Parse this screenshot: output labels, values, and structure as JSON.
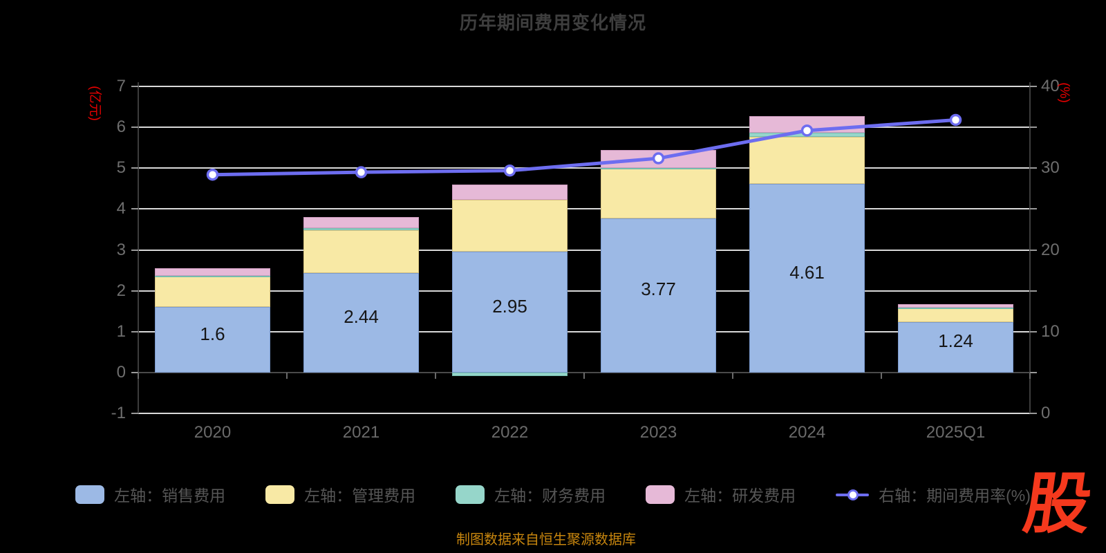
{
  "header": {
    "title": "历年期间费用变化情况"
  },
  "footer": {
    "source_note": "制图数据来自恒生聚源数据库",
    "logo_text": "股"
  },
  "chart_data": {
    "type": "combo: stacked bar (left axis) + line (right axis)",
    "title": "历年期间费用变化情况",
    "categories": [
      "2020",
      "2021",
      "2022",
      "2023",
      "2024",
      "2025Q1"
    ],
    "left_axis": {
      "label": "(亿元)",
      "min": -1,
      "max": 7,
      "tick_values": [
        7,
        6,
        5,
        4,
        3,
        2,
        1,
        0,
        -1
      ],
      "label_color": "#e60000"
    },
    "right_axis": {
      "label": "(%)",
      "min": 0,
      "max": 40,
      "tick_step": 5,
      "labeled_ticks": [
        40,
        30,
        20,
        10,
        0
      ],
      "label_color": "#e60000"
    },
    "grid": true,
    "legend_position": "bottom",
    "bar_series": [
      {
        "name": "左轴：销售费用",
        "color": "#9cb9e5",
        "border": "#7a9ace",
        "values": [
          1.6,
          2.44,
          2.95,
          3.77,
          4.61,
          1.24
        ]
      },
      {
        "name": "左轴：管理费用",
        "color": "#f8e9a5",
        "border": "#d9c684",
        "values": [
          0.76,
          1.04,
          1.28,
          1.22,
          1.16,
          0.33
        ]
      },
      {
        "name": "左轴：财务费用",
        "color": "#96d6ca",
        "border": "#74bcae",
        "values": [
          0.01,
          0.05,
          -0.08,
          0.01,
          0.1,
          0.02
        ]
      },
      {
        "name": "左轴：研发费用",
        "color": "#e6b9d7",
        "border": "#cf9cc0",
        "values": [
          0.19,
          0.27,
          0.36,
          0.45,
          0.41,
          0.09
        ]
      }
    ],
    "line_series": {
      "name": "右轴：期间费用率(%)",
      "axis": "right",
      "color": "#6d6df0",
      "marker": "circle-white",
      "values": [
        29.2,
        29.5,
        29.7,
        31.2,
        34.6,
        35.9
      ]
    },
    "bar_value_labels": {
      "series": "左轴：销售费用",
      "values": [
        "1.6",
        "2.44",
        "2.95",
        "3.77",
        "4.61",
        "1.24"
      ]
    }
  }
}
